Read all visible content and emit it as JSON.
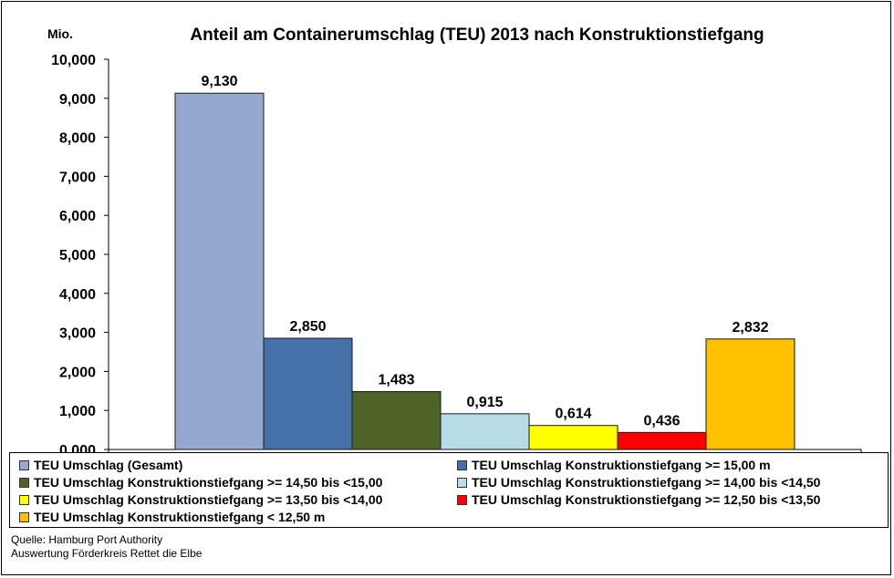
{
  "chart_data": {
    "type": "bar",
    "title": "Anteil am Containerumschlag (TEU) 2013 nach Konstruktionstiefgang",
    "ylabel": "Mio.",
    "xlabel": "",
    "ylim": [
      0,
      10
    ],
    "y_ticks": [
      "0,000",
      "1,000",
      "2,000",
      "3,000",
      "4,000",
      "5,000",
      "6,000",
      "7,000",
      "8,000",
      "9,000",
      "10,000"
    ],
    "grid": false,
    "legend_position": "bottom",
    "series": [
      {
        "name": "TEU Umschlag (Gesamt)",
        "value": 9.13,
        "label": "9,130",
        "color": "#95a8d0"
      },
      {
        "name": "TEU Umschlag  Konstruktionstiefgang >= 15,00 m",
        "value": 2.85,
        "label": "2,850",
        "color": "#4670a8"
      },
      {
        "name": "TEU Umschlag Konstruktionstiefgang >= 14,50 bis <15,00",
        "value": 1.483,
        "label": "1,483",
        "color": "#4f6228"
      },
      {
        "name": "TEU Umschlag Konstruktionstiefgang >= 14,00 bis <14,50",
        "value": 0.915,
        "label": "0,915",
        "color": "#b7dde8"
      },
      {
        "name": "TEU Umschlag Konstruktionstiefgang >= 13,50 bis <14,00",
        "value": 0.614,
        "label": "0,614",
        "color": "#ffff00"
      },
      {
        "name": "TEU Umschlag Konstruktionstiefgang >= 12,50 bis <13,50",
        "value": 0.436,
        "label": "0,436",
        "color": "#ff0000"
      },
      {
        "name": "TEU Umschlag Konstruktionstiefgang < 12,50 m",
        "value": 2.832,
        "label": "2,832",
        "color": "#ffc000"
      }
    ]
  },
  "source": {
    "line1": "Quelle: Hamburg Port Authority",
    "line2": "Auswertung Förderkreis Rettet  die Elbe"
  }
}
